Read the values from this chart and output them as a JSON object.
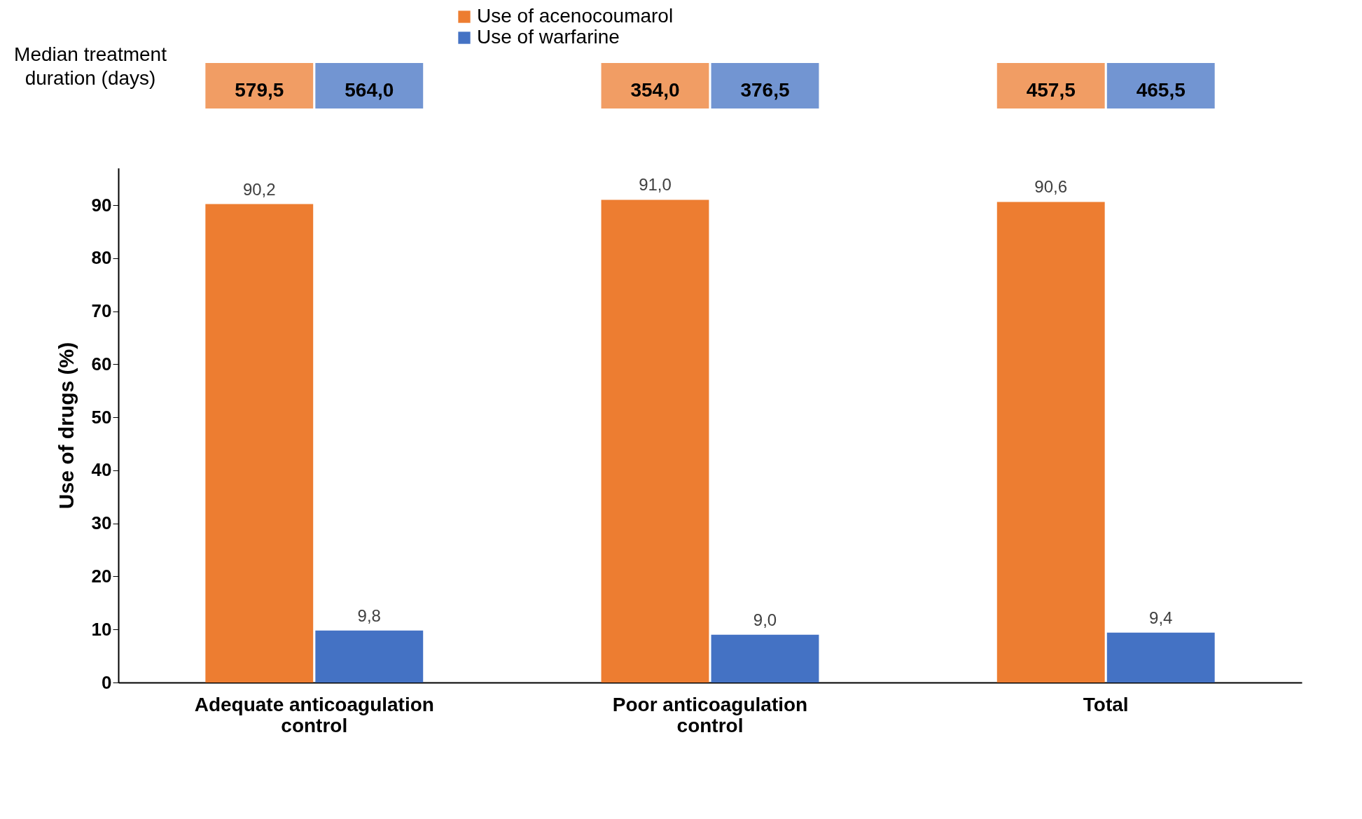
{
  "chart_data": {
    "type": "bar",
    "categories": [
      "Adequate anticoagulation control",
      "Poor anticoagulation control",
      "Total"
    ],
    "ylabel": "Use of drugs (%)",
    "series": [
      {
        "name": "Use of acenocoumarol",
        "color": "#ed7d31",
        "values": [
          90.2,
          91.0,
          90.6
        ],
        "value_labels": [
          "90,2",
          "91,0",
          "90,6"
        ]
      },
      {
        "name": "Use of warfarine",
        "color": "#4472c4",
        "values": [
          9.8,
          9.0,
          9.4
        ],
        "value_labels": [
          "9,8",
          "9,0",
          "9,4"
        ]
      }
    ],
    "ylim": [
      0,
      97
    ],
    "yticks": [
      0,
      10,
      20,
      30,
      40,
      50,
      60,
      70,
      80,
      90
    ],
    "grid": false,
    "legend": "top",
    "annotations": [
      "Median treatment duration (days)",
      "579,5",
      "564,0",
      "354,0",
      "376,5",
      "457,5",
      "465,5"
    ]
  }
}
